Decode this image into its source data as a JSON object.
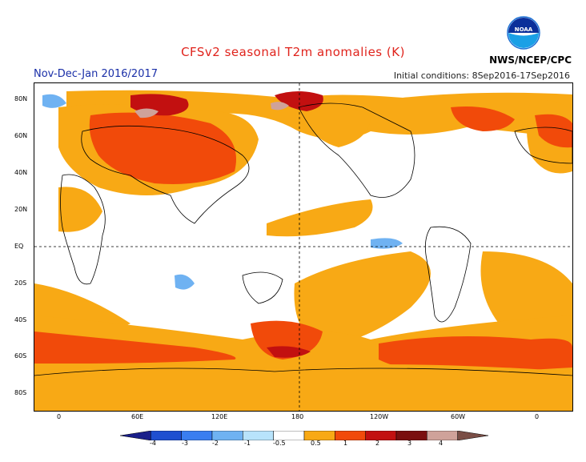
{
  "header": {
    "title": "CFSv2 seasonal T2m anomalies (K)",
    "season": "Nov-Dec-Jan 2016/2017",
    "initial_conditions": "Initial conditions: 8Sep2016-17Sep2016",
    "agency": "NWS/NCEP/CPC",
    "logo_text": "NOAA"
  },
  "axes": {
    "lat_labels": [
      "80N",
      "60N",
      "40N",
      "20N",
      "EQ",
      "20S",
      "40S",
      "60S",
      "80S"
    ],
    "lon_labels": [
      "0",
      "60E",
      "120E",
      "180",
      "120W",
      "60W",
      "0"
    ]
  },
  "legend": {
    "labels": [
      "-4",
      "-3",
      "-2",
      "-1",
      "-0.5",
      "0.5",
      "1",
      "2",
      "3",
      "4"
    ],
    "colors": [
      "#1a1f8a",
      "#1f4fd0",
      "#3a7ef0",
      "#6fb2f2",
      "#b8e3fb",
      "#ffffff",
      "#f8a915",
      "#f14a0a",
      "#c21010",
      "#7a0f0f",
      "#cfa29a",
      "#7a4e46"
    ]
  }
}
